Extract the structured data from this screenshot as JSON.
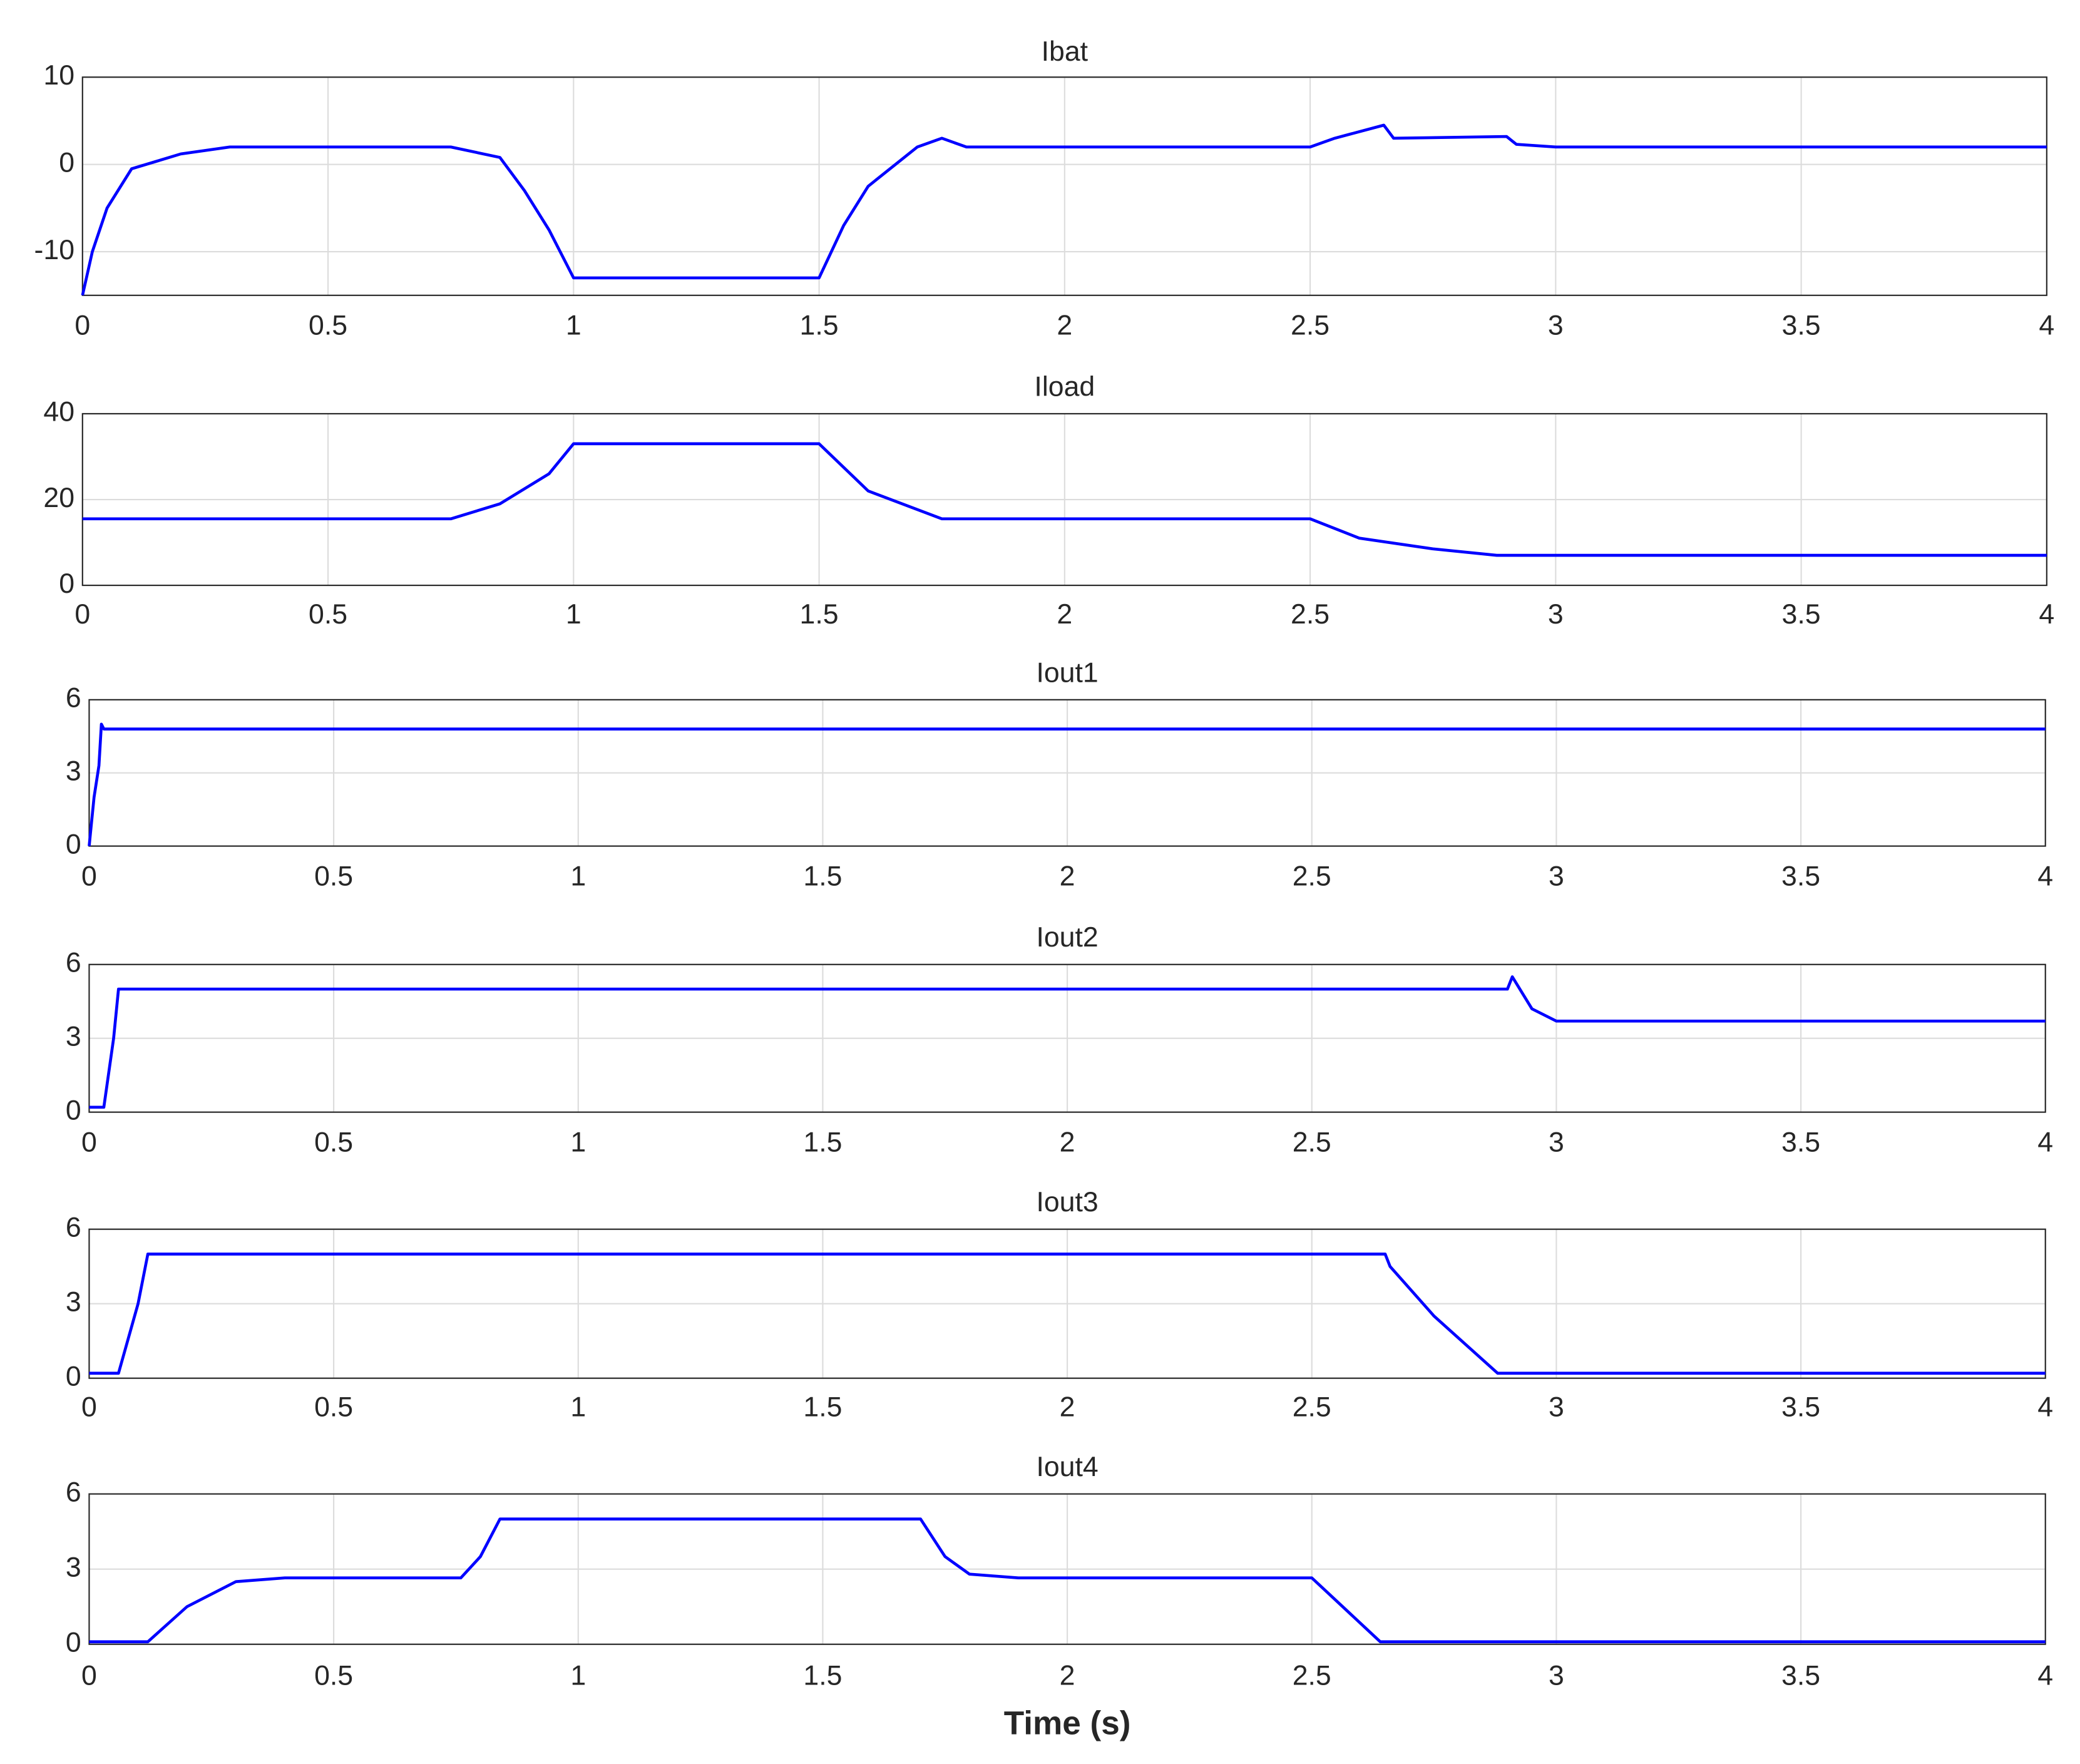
{
  "chart_data": [
    {
      "type": "line",
      "title": "Ibat",
      "color": "#0000ff",
      "grid": true,
      "x": [
        0,
        0.02,
        0.05,
        0.1,
        0.2,
        0.3,
        0.75,
        0.85,
        0.9,
        0.95,
        1.0,
        1.5,
        1.55,
        1.6,
        1.7,
        1.75,
        1.8,
        2.5,
        2.55,
        2.65,
        2.67,
        2.9,
        2.92,
        3.0,
        4
      ],
      "values": [
        -15,
        -10,
        -5,
        -0.5,
        1.2,
        2,
        2,
        0.8,
        -3,
        -7.5,
        -13,
        -13,
        -7,
        -2.5,
        2,
        3,
        2,
        2,
        3,
        4.5,
        3,
        3.2,
        2.3,
        2,
        2
      ],
      "xlim": [
        0,
        4
      ],
      "xticks": [
        0,
        0.5,
        1,
        1.5,
        2,
        2.5,
        3,
        3.5,
        4
      ],
      "ylim": [
        -15,
        10
      ],
      "yticks": [
        -10,
        0,
        10
      ]
    },
    {
      "type": "line",
      "title": "Iload",
      "color": "#0000ff",
      "grid": true,
      "x": [
        0,
        0.75,
        0.85,
        0.95,
        1.0,
        1.5,
        1.6,
        1.75,
        2.5,
        2.6,
        2.75,
        2.88,
        4
      ],
      "values": [
        15.5,
        15.5,
        19,
        26,
        33,
        33,
        22,
        15.5,
        15.5,
        11,
        8.5,
        7,
        7
      ],
      "xlim": [
        0,
        4
      ],
      "xticks": [
        0,
        0.5,
        1,
        1.5,
        2,
        2.5,
        3,
        3.5,
        4
      ],
      "ylim": [
        0,
        40
      ],
      "yticks": [
        0,
        20,
        40
      ]
    },
    {
      "type": "line",
      "title": "Iout1",
      "color": "#0000ff",
      "grid": true,
      "x": [
        0,
        0.01,
        0.02,
        0.025,
        0.03,
        4
      ],
      "values": [
        0,
        2,
        3.3,
        5,
        4.8,
        4.8
      ],
      "xlim": [
        0,
        4
      ],
      "xticks": [
        0,
        0.5,
        1,
        1.5,
        2,
        2.5,
        3,
        3.5,
        4
      ],
      "ylim": [
        0,
        6
      ],
      "yticks": [
        0,
        3,
        6
      ]
    },
    {
      "type": "line",
      "title": "Iout2",
      "color": "#0000ff",
      "grid": true,
      "x": [
        0,
        0.03,
        0.05,
        0.06,
        2.9,
        2.91,
        2.95,
        3.0,
        4
      ],
      "values": [
        0.2,
        0.2,
        3,
        5,
        5,
        5.5,
        4.2,
        3.7,
        3.7
      ],
      "xlim": [
        0,
        4
      ],
      "xticks": [
        0,
        0.5,
        1,
        1.5,
        2,
        2.5,
        3,
        3.5,
        4
      ],
      "ylim": [
        0,
        6
      ],
      "yticks": [
        0,
        3,
        6
      ]
    },
    {
      "type": "line",
      "title": "Iout3",
      "color": "#0000ff",
      "grid": true,
      "x": [
        0,
        0.06,
        0.1,
        0.12,
        2.65,
        2.66,
        2.75,
        2.88,
        4
      ],
      "values": [
        0.2,
        0.2,
        3,
        5,
        5,
        4.5,
        2.5,
        0.2,
        0.2
      ],
      "xlim": [
        0,
        4
      ],
      "xticks": [
        0,
        0.5,
        1,
        1.5,
        2,
        2.5,
        3,
        3.5,
        4
      ],
      "ylim": [
        0,
        6
      ],
      "yticks": [
        0,
        3,
        6
      ]
    },
    {
      "type": "line",
      "title": "Iout4",
      "color": "#0000ff",
      "grid": true,
      "x_label": "Time (s)",
      "x": [
        0,
        0.12,
        0.2,
        0.3,
        0.4,
        0.76,
        0.8,
        0.84,
        1.7,
        1.75,
        1.8,
        1.9,
        2.5,
        2.64,
        4
      ],
      "values": [
        0.1,
        0.1,
        1.5,
        2.5,
        2.65,
        2.65,
        3.5,
        5,
        5,
        3.5,
        2.8,
        2.65,
        2.65,
        0.1,
        0.1
      ],
      "xlim": [
        0,
        4
      ],
      "xticks": [
        0,
        0.5,
        1,
        1.5,
        2,
        2.5,
        3,
        3.5,
        4
      ],
      "ylim": [
        0,
        6
      ],
      "yticks": [
        0,
        3,
        6
      ]
    }
  ]
}
